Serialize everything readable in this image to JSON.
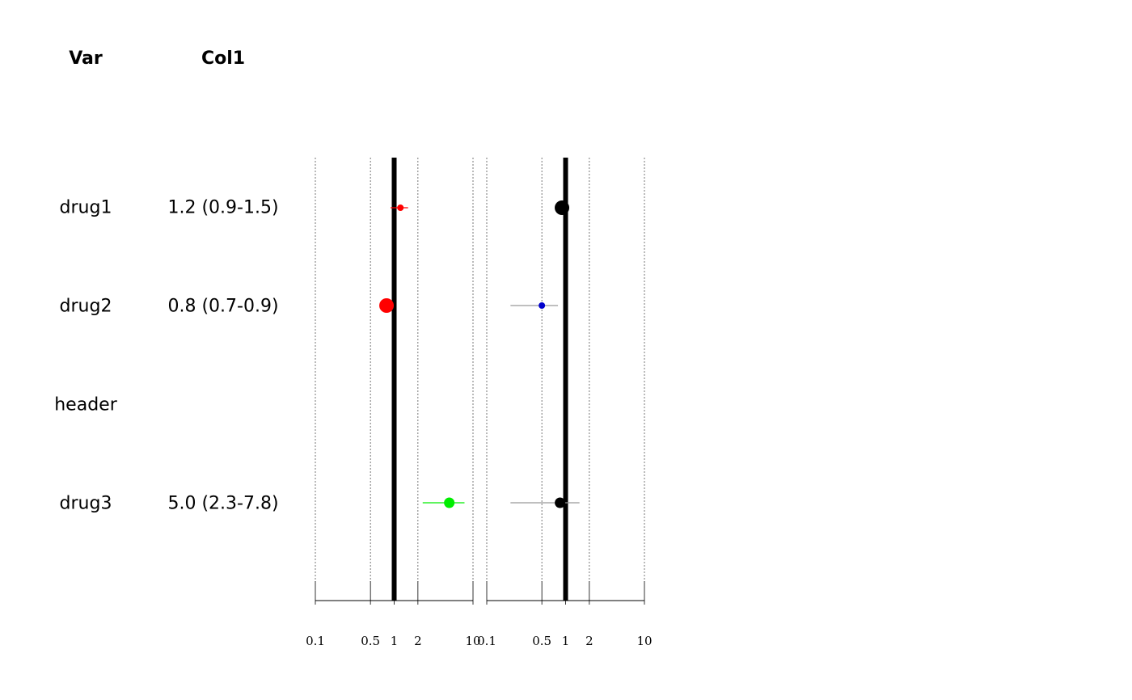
{
  "table": {
    "headers": {
      "var": "Var",
      "col1": "Col1"
    },
    "rows": [
      {
        "var": "drug1",
        "col1": "1.2 (0.9-1.5)"
      },
      {
        "var": "drug2",
        "col1": "0.8 (0.7-0.9)"
      },
      {
        "var": "header",
        "col1": ""
      },
      {
        "var": "drug3",
        "col1": "5.0 (2.3-7.8)"
      }
    ]
  },
  "chart_data": [
    {
      "type": "forest",
      "scale": "log",
      "reference_line": 1,
      "xlim": [
        0.1,
        10
      ],
      "ticks": [
        "0.1",
        "0.5",
        "1",
        "2",
        "10"
      ],
      "tick_values": [
        0.1,
        0.5,
        1,
        2,
        10
      ],
      "grid": true,
      "points": [
        {
          "row": "drug1",
          "estimate": 1.2,
          "lower": 0.9,
          "upper": 1.5,
          "color": "#ff0000",
          "size": "small"
        },
        {
          "row": "drug2",
          "estimate": 0.8,
          "lower": 0.7,
          "upper": 0.9,
          "color": "#ff0000",
          "size": "large"
        },
        {
          "row": "drug3",
          "estimate": 5.0,
          "lower": 2.3,
          "upper": 7.8,
          "color": "#00ee00",
          "size": "medium"
        }
      ]
    },
    {
      "type": "forest",
      "scale": "log",
      "reference_line": 1,
      "xlim": [
        0.1,
        10
      ],
      "ticks": [
        "0.1",
        "0.5",
        "1",
        "2",
        "10"
      ],
      "tick_values": [
        0.1,
        0.5,
        1,
        2,
        10
      ],
      "grid": true,
      "points": [
        {
          "row": "drug1",
          "estimate": 0.9,
          "lower": 0.9,
          "upper": 0.9,
          "color": "#000000",
          "size": "large"
        },
        {
          "row": "drug2",
          "estimate": 0.5,
          "lower": 0.2,
          "upper": 0.8,
          "color": "#0000cc",
          "size": "small"
        },
        {
          "row": "drug3",
          "estimate": 0.85,
          "lower": 0.2,
          "upper": 1.5,
          "color": "#000000",
          "size": "medium"
        }
      ]
    }
  ]
}
